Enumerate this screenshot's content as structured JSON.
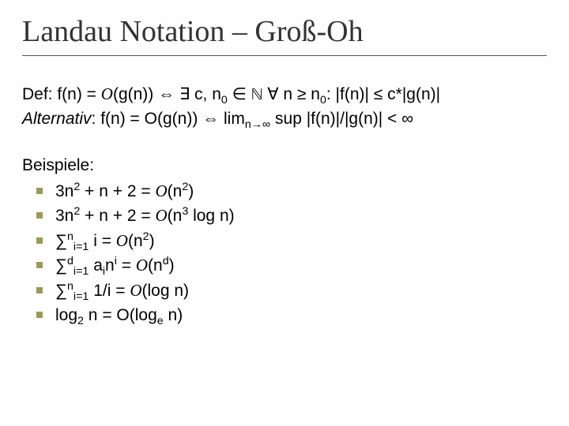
{
  "title": "Landau Notation – Groß-Oh",
  "def": {
    "line1_html": "Def: f(n) = <span class=\"cal\">O</span>(g(n)) &hArr; &exist; c, n<sub>0</sub> &isin; <span class=\"bb\">&#8469;</span> &forall; n &ge; n<sub>0</sub>: |f(n)| &le; c*|g(n)|",
    "line2_html": "<span class=\"italic\">Alternativ</span>: f(n) = O(g(n)) &hArr; lim<sub>n&rarr;&infin;</sub> sup |f(n)|/|g(n)| &lt; &infin;"
  },
  "examples": {
    "heading": "Beispiele:",
    "items": [
      "3n<sup>2</sup> + n + 2 = <span class=\"cal\">O</span>(n<sup>2</sup>)",
      "3n<sup>2</sup> + n + 2 = <span class=\"cal\">O</span>(n<sup>3</sup> log n)",
      "&sum;<sup>n</sup><sub>i=1</sub> i = <span class=\"cal\">O</span>(n<sup>2</sup>)",
      "&sum;<sup>d</sup><sub>i=1</sub> a<sub>i</sub>n<sup>i</sup> = <span class=\"cal\">O</span>(n<sup>d</sup>)",
      "&sum;<sup>n</sup><sub>i=1</sub> 1/i = <span class=\"cal\">O</span>(log n)",
      "log<sub>2</sub> n = O(log<sub>e</sub> n)"
    ]
  },
  "style": {
    "background": "#ffffff",
    "text_color": "#000000",
    "title_color": "#333333",
    "title_fontsize_pt": 29,
    "body_fontsize_pt": 16,
    "bullet_color": "#9a9a5a",
    "underline_color": "#555555",
    "font_title": "Garamond/serif",
    "font_body": "Arial/sans-serif"
  }
}
